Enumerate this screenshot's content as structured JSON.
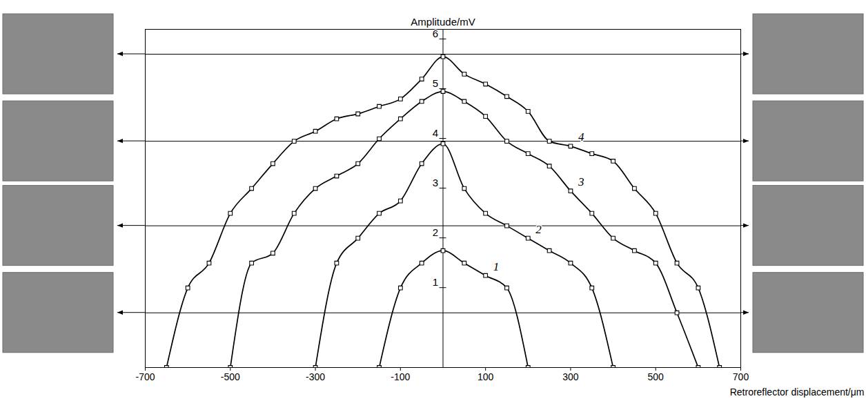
{
  "chart_data": {
    "type": "line",
    "y_label": "Amplitude/mV",
    "x_label": "Retroreflector displacement/μm",
    "xlim": [
      -700,
      700
    ],
    "xticks": [
      -700,
      -500,
      -300,
      -100,
      100,
      300,
      500,
      700
    ],
    "ylim": [
      -0.6,
      6.2
    ],
    "yticks": [
      1,
      2,
      3,
      4,
      5,
      6
    ],
    "grid": false,
    "marker": "square",
    "line_style": "solid",
    "reference_levels": [
      5.7,
      3.95,
      2.25,
      0.5
    ],
    "series": [
      {
        "name": "1",
        "color": "#000000",
        "x": [
          -150,
          -100,
          -50,
          0,
          50,
          100,
          150,
          200
        ],
        "values": [
          -0.6,
          1.0,
          1.5,
          1.75,
          1.5,
          1.25,
          1.0,
          -0.6
        ]
      },
      {
        "name": "2",
        "color": "#000000",
        "x": [
          -300,
          -250,
          -200,
          -150,
          -100,
          -50,
          0,
          50,
          100,
          150,
          200,
          250,
          300,
          350,
          400
        ],
        "values": [
          -0.6,
          1.5,
          2.0,
          2.5,
          2.75,
          3.5,
          3.9,
          3.0,
          2.5,
          2.25,
          2.0,
          1.75,
          1.5,
          1.0,
          -0.6
        ]
      },
      {
        "name": "3",
        "color": "#000000",
        "x": [
          -500,
          -450,
          -400,
          -350,
          -300,
          -250,
          -200,
          -150,
          -100,
          -50,
          0,
          50,
          100,
          150,
          200,
          250,
          300,
          350,
          400,
          450,
          500,
          550,
          600
        ],
        "values": [
          -0.6,
          1.5,
          1.7,
          2.5,
          3.0,
          3.25,
          3.5,
          4.0,
          4.4,
          4.75,
          4.95,
          4.75,
          4.45,
          3.95,
          3.7,
          3.45,
          2.95,
          2.5,
          2.0,
          1.75,
          1.5,
          0.5,
          -0.6
        ]
      },
      {
        "name": "4",
        "color": "#000000",
        "x": [
          -650,
          -600,
          -550,
          -500,
          -450,
          -400,
          -350,
          -300,
          -250,
          -200,
          -150,
          -100,
          -50,
          0,
          50,
          100,
          150,
          200,
          250,
          300,
          350,
          400,
          450,
          500,
          550,
          600,
          650
        ],
        "values": [
          -0.6,
          1.0,
          1.5,
          2.5,
          3.0,
          3.5,
          3.95,
          4.15,
          4.4,
          4.5,
          4.65,
          4.8,
          5.2,
          5.65,
          5.3,
          5.1,
          4.85,
          4.55,
          3.95,
          3.85,
          3.7,
          3.55,
          3.0,
          2.5,
          1.5,
          1.0,
          -0.6
        ]
      }
    ]
  }
}
